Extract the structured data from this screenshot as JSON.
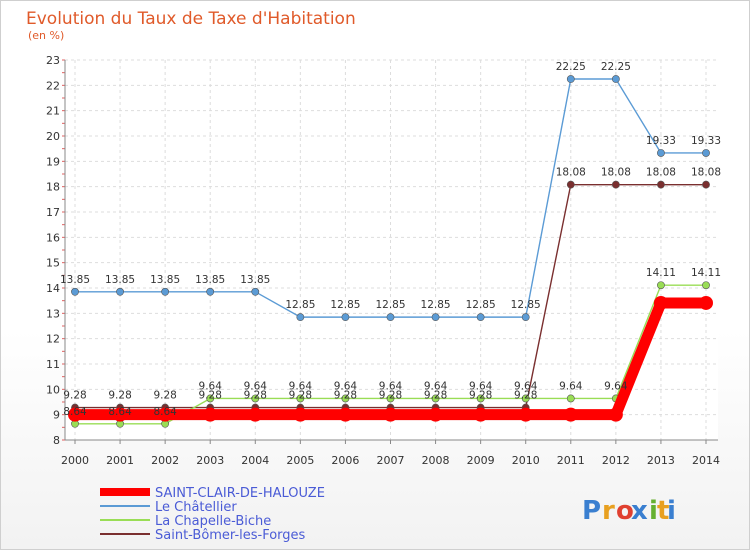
{
  "chart_data": {
    "type": "line",
    "title": "Evolution du Taux de Taxe d'Habitation",
    "subtitle": "(en %)",
    "x": [
      "2000",
      "2001",
      "2002",
      "2003",
      "2004",
      "2005",
      "2006",
      "2007",
      "2008",
      "2009",
      "2010",
      "2011",
      "2012",
      "2013",
      "2014"
    ],
    "ylim": [
      8,
      23
    ],
    "yticks": [
      8,
      9,
      10,
      11,
      12,
      13,
      14,
      15,
      16,
      17,
      18,
      19,
      20,
      21,
      22,
      23
    ],
    "grid": true,
    "legend_position": "bottom-left",
    "series": [
      {
        "name": "SAINT-CLAIR-DE-HALOUZE",
        "color": "#ff0000",
        "values": [
          9,
          9,
          9,
          9,
          9,
          9,
          9,
          9,
          9,
          9,
          9,
          9,
          9,
          13.41,
          13.41
        ],
        "labels": false
      },
      {
        "name": "Le Châtellier",
        "color": "#5b9bd5",
        "values": [
          13.85,
          13.85,
          13.85,
          13.85,
          13.85,
          12.85,
          12.85,
          12.85,
          12.85,
          12.85,
          12.85,
          22.25,
          22.25,
          19.33,
          19.33
        ],
        "labels": true
      },
      {
        "name": "La Chapelle-Biche",
        "color": "#99dd55",
        "values": [
          8.64,
          8.64,
          8.64,
          9.64,
          9.64,
          9.64,
          9.64,
          9.64,
          9.64,
          9.64,
          9.64,
          9.64,
          9.64,
          14.11,
          14.11
        ],
        "labels": true
      },
      {
        "name": "Saint-Bômer-les-Forges",
        "color": "#7a2f2f",
        "values": [
          9.28,
          9.28,
          9.28,
          9.28,
          9.28,
          9.28,
          9.28,
          9.28,
          9.28,
          9.28,
          9.28,
          18.08,
          18.08,
          18.08,
          18.08
        ],
        "labels": true
      }
    ]
  },
  "logo": {
    "text": "Proxiti",
    "colors": [
      "#3a7fd0",
      "#e8a020",
      "#e04030",
      "#3a7fd0",
      "#66b030",
      "#e8a020",
      "#3a7fd0"
    ]
  }
}
